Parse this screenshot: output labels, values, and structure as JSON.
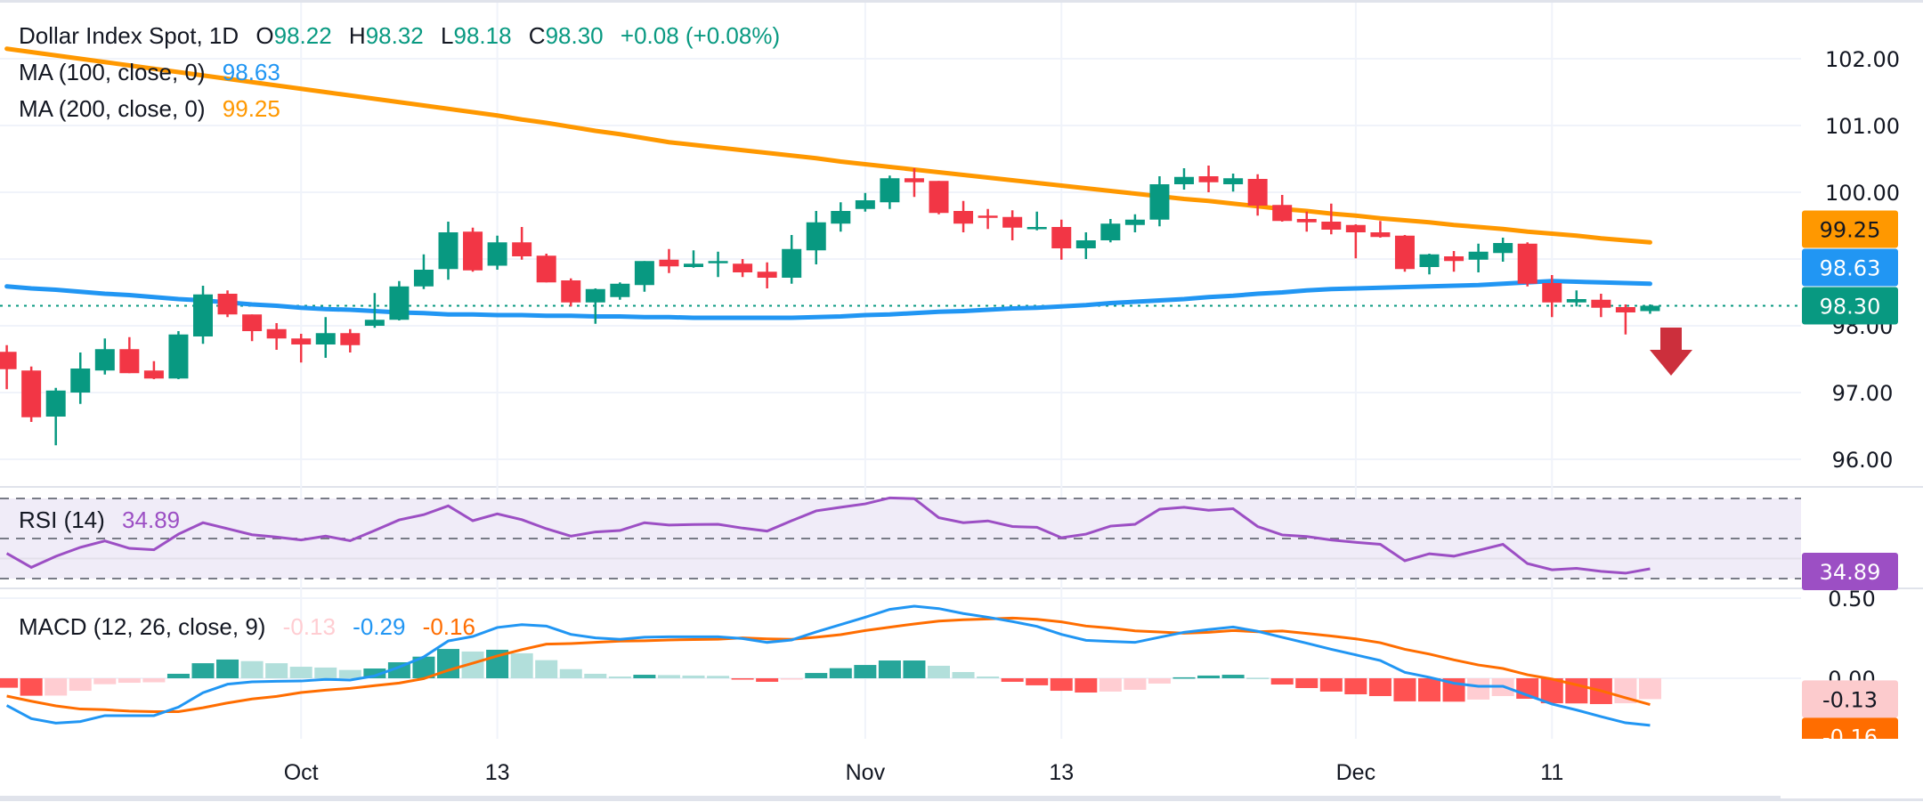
{
  "header": {
    "symbol": "Dollar Index Spot, 1D",
    "o_label": "O",
    "o": "98.22",
    "h_label": "H",
    "h": "98.32",
    "l_label": "L",
    "l": "98.18",
    "c_label": "C",
    "c": "98.30",
    "change": "+0.08 (+0.08%)"
  },
  "legend": {
    "ma100": {
      "label": "MA (100, close, 0)",
      "value": "98.63"
    },
    "ma200": {
      "label": "MA (200, close, 0)",
      "value": "99.25"
    },
    "rsi": {
      "label": "RSI (14)",
      "value": "34.89"
    },
    "macd": {
      "label": "MACD (12, 26, close, 9)",
      "hist": "-0.13",
      "macd": "-0.29",
      "signal": "-0.16"
    }
  },
  "colors": {
    "up": "#089981",
    "down": "#f23645",
    "ma100": "#2196f3",
    "ma200": "#ff9800",
    "rsi": "#9c4fc4",
    "rsi_band": "#f0ecf8",
    "macd": "#2196f3",
    "signal": "#ff6d00",
    "hist_up_strong": "#26a69a",
    "hist_up_weak": "#b2dfdb",
    "hist_down_strong": "#ff5252",
    "hist_down_weak": "#ffcdd2",
    "arrow": "#cc2f3c",
    "grid": "#f0f3fa",
    "text_value": "#089981"
  },
  "annotations": {
    "arrow": "down-arrow-icon"
  },
  "chart_data": [
    {
      "type": "candlestick",
      "title": "Dollar Index Spot, 1D",
      "ylim": [
        95.6,
        102.7
      ],
      "grid": true,
      "y_ticks": [
        {
          "value": 102,
          "label": "102.00"
        },
        {
          "value": 101,
          "label": "101.00"
        },
        {
          "value": 100,
          "label": "100.00"
        },
        {
          "value": 98,
          "label": "98.00"
        },
        {
          "value": 97,
          "label": "97.00"
        },
        {
          "value": 96,
          "label": "96.00"
        }
      ],
      "x_ticks": [
        {
          "bar": 12,
          "label": "Oct"
        },
        {
          "bar": 20,
          "label": "13"
        },
        {
          "bar": 35,
          "label": "Nov"
        },
        {
          "bar": 43,
          "label": "13"
        },
        {
          "bar": 55,
          "label": "Dec"
        },
        {
          "bar": 63,
          "label": "11"
        }
      ],
      "last_price": 98.3,
      "price_tags": [
        {
          "value": 99.25,
          "label": "99.25",
          "bg": "#ff9800",
          "fg": "#131722"
        },
        {
          "value": 98.63,
          "label": "98.63",
          "bg": "#2196f3",
          "fg": "#ffffff"
        },
        {
          "value": 98.3,
          "label": "98.30",
          "bg": "#089981",
          "fg": "#ffffff"
        }
      ],
      "ohlc": [
        [
          97.61,
          97.71,
          97.05,
          97.35
        ],
        [
          97.33,
          97.39,
          96.56,
          96.63
        ],
        [
          96.64,
          97.07,
          96.21,
          97.03
        ],
        [
          97.0,
          97.6,
          96.83,
          97.36
        ],
        [
          97.33,
          97.81,
          97.27,
          97.65
        ],
        [
          97.65,
          97.83,
          97.29,
          97.29
        ],
        [
          97.33,
          97.47,
          97.2,
          97.21
        ],
        [
          97.21,
          97.92,
          97.2,
          97.87
        ],
        [
          97.84,
          98.6,
          97.73,
          98.47
        ],
        [
          98.48,
          98.53,
          98.13,
          98.17
        ],
        [
          98.17,
          98.17,
          97.77,
          97.92
        ],
        [
          97.95,
          98.04,
          97.64,
          97.81
        ],
        [
          97.81,
          97.88,
          97.45,
          97.72
        ],
        [
          97.72,
          98.13,
          97.52,
          97.89
        ],
        [
          97.89,
          97.95,
          97.6,
          97.71
        ],
        [
          98.0,
          98.49,
          97.97,
          98.09
        ],
        [
          98.09,
          98.67,
          98.08,
          98.59
        ],
        [
          98.59,
          99.07,
          98.55,
          98.84
        ],
        [
          98.85,
          99.56,
          98.69,
          99.4
        ],
        [
          99.41,
          99.47,
          98.81,
          98.83
        ],
        [
          98.9,
          99.35,
          98.84,
          99.25
        ],
        [
          99.25,
          99.48,
          98.99,
          99.04
        ],
        [
          99.05,
          99.08,
          98.65,
          98.65
        ],
        [
          98.68,
          98.71,
          98.29,
          98.35
        ],
        [
          98.35,
          98.56,
          98.03,
          98.55
        ],
        [
          98.43,
          98.65,
          98.39,
          98.63
        ],
        [
          98.61,
          98.97,
          98.51,
          98.97
        ],
        [
          98.99,
          99.15,
          98.79,
          98.89
        ],
        [
          98.88,
          99.13,
          98.87,
          98.93
        ],
        [
          98.95,
          99.11,
          98.73,
          98.97
        ],
        [
          98.93,
          99.0,
          98.73,
          98.8
        ],
        [
          98.81,
          98.95,
          98.56,
          98.72
        ],
        [
          98.72,
          99.36,
          98.63,
          99.15
        ],
        [
          99.13,
          99.72,
          98.92,
          99.55
        ],
        [
          99.53,
          99.85,
          99.41,
          99.72
        ],
        [
          99.75,
          99.99,
          99.71,
          99.88
        ],
        [
          99.85,
          100.25,
          99.75,
          100.21
        ],
        [
          100.21,
          100.36,
          99.93,
          100.15
        ],
        [
          100.17,
          100.17,
          99.67,
          99.69
        ],
        [
          99.72,
          99.87,
          99.4,
          99.53
        ],
        [
          99.65,
          99.75,
          99.45,
          99.63
        ],
        [
          99.63,
          99.73,
          99.28,
          99.47
        ],
        [
          99.45,
          99.71,
          99.43,
          99.48
        ],
        [
          99.48,
          99.59,
          98.99,
          99.16
        ],
        [
          99.16,
          99.4,
          99.0,
          99.28
        ],
        [
          99.28,
          99.6,
          99.25,
          99.53
        ],
        [
          99.51,
          99.67,
          99.4,
          99.59
        ],
        [
          99.59,
          100.24,
          99.49,
          100.12
        ],
        [
          100.12,
          100.36,
          100.04,
          100.23
        ],
        [
          100.24,
          100.4,
          100.0,
          100.15
        ],
        [
          100.12,
          100.28,
          100.01,
          100.21
        ],
        [
          100.2,
          100.27,
          99.65,
          99.8
        ],
        [
          99.81,
          99.96,
          99.56,
          99.57
        ],
        [
          99.6,
          99.71,
          99.41,
          99.55
        ],
        [
          99.56,
          99.83,
          99.37,
          99.44
        ],
        [
          99.51,
          99.52,
          99.01,
          99.4
        ],
        [
          99.4,
          99.57,
          99.32,
          99.33
        ],
        [
          99.35,
          99.36,
          98.81,
          98.85
        ],
        [
          98.88,
          99.08,
          98.77,
          99.07
        ],
        [
          99.04,
          99.12,
          98.81,
          98.97
        ],
        [
          98.99,
          99.23,
          98.8,
          99.11
        ],
        [
          99.09,
          99.32,
          98.96,
          99.24
        ],
        [
          99.23,
          99.25,
          98.59,
          98.63
        ],
        [
          98.64,
          98.76,
          98.13,
          98.35
        ],
        [
          98.35,
          98.53,
          98.29,
          98.4
        ],
        [
          98.39,
          98.48,
          98.13,
          98.27
        ],
        [
          98.28,
          98.32,
          97.87,
          98.2
        ],
        [
          98.22,
          98.32,
          98.18,
          98.3
        ]
      ],
      "series": [
        {
          "name": "MA (100, close, 0)",
          "values": [
            98.59,
            98.56,
            98.54,
            98.51,
            98.48,
            98.46,
            98.43,
            98.4,
            98.38,
            98.35,
            98.32,
            98.3,
            98.27,
            98.25,
            98.24,
            98.22,
            98.2,
            98.19,
            98.17,
            98.17,
            98.16,
            98.16,
            98.15,
            98.15,
            98.14,
            98.14,
            98.13,
            98.13,
            98.12,
            98.12,
            98.12,
            98.12,
            98.12,
            98.13,
            98.14,
            98.16,
            98.17,
            98.19,
            98.21,
            98.22,
            98.24,
            98.26,
            98.27,
            98.29,
            98.31,
            98.34,
            98.36,
            98.38,
            98.4,
            98.43,
            98.45,
            98.48,
            98.5,
            98.53,
            98.55,
            98.56,
            98.57,
            98.58,
            98.59,
            98.6,
            98.61,
            98.63,
            98.65,
            98.67,
            98.66,
            98.65,
            98.64,
            98.63
          ]
        },
        {
          "name": "MA (200, close, 0)",
          "values": [
            102.15,
            102.1,
            102.05,
            102.0,
            101.95,
            101.9,
            101.85,
            101.8,
            101.75,
            101.7,
            101.65,
            101.6,
            101.55,
            101.5,
            101.45,
            101.4,
            101.35,
            101.3,
            101.25,
            101.2,
            101.15,
            101.09,
            101.04,
            100.98,
            100.92,
            100.87,
            100.81,
            100.75,
            100.71,
            100.67,
            100.63,
            100.59,
            100.55,
            100.51,
            100.46,
            100.42,
            100.38,
            100.34,
            100.3,
            100.26,
            100.22,
            100.18,
            100.14,
            100.1,
            100.06,
            100.02,
            99.98,
            99.94,
            99.9,
            99.87,
            99.83,
            99.79,
            99.75,
            99.72,
            99.68,
            99.65,
            99.61,
            99.58,
            99.55,
            99.51,
            99.48,
            99.45,
            99.41,
            99.38,
            99.35,
            99.31,
            99.28,
            99.25
          ]
        }
      ]
    },
    {
      "type": "line",
      "title": "RSI (14)",
      "ylim": [
        25,
        80
      ],
      "bands": [
        70,
        50,
        30
      ],
      "last_tag": {
        "value": 34.89,
        "label": "34.89"
      },
      "values": [
        42.6,
        35.6,
        41.1,
        45.6,
        48.8,
        45.1,
        44.4,
        52.2,
        57.9,
        54.9,
        51.9,
        50.7,
        49.3,
        51.2,
        48.9,
        54.0,
        59.3,
        61.9,
        66.3,
        58.9,
        62.3,
        59.4,
        54.9,
        51.2,
        53.3,
        54.0,
        57.9,
        56.7,
        57.0,
        57.1,
        55.2,
        53.7,
        58.9,
        63.8,
        65.6,
        67.3,
        70.3,
        69.9,
        60.4,
        57.9,
        58.8,
        56.0,
        55.6,
        50.4,
        52.2,
        56.2,
        57.1,
        64.6,
        65.6,
        64.1,
        64.9,
        56.0,
        51.8,
        51.0,
        49.3,
        48.1,
        47.1,
        38.9,
        42.4,
        41.2,
        44.1,
        47.1,
        37.5,
        34.4,
        35.1,
        33.6,
        32.7,
        34.89
      ]
    },
    {
      "type": "bar+line",
      "title": "MACD (12, 26, close, 9)",
      "ylim": [
        -0.38,
        0.5
      ],
      "y_ticks": [
        {
          "value": 0.5,
          "label": "0.50"
        },
        {
          "value": 0,
          "label": "0.00"
        }
      ],
      "last_tags": [
        {
          "value": -0.13,
          "label": "-0.13",
          "bg": "#fccbcd",
          "fg": "#131722"
        },
        {
          "value": -0.16,
          "label": "-0.16",
          "bg": "#ff6d00",
          "fg": "#ffffff"
        }
      ],
      "macd": [
        -0.17,
        -0.252,
        -0.28,
        -0.27,
        -0.233,
        -0.233,
        -0.233,
        -0.18,
        -0.09,
        -0.037,
        -0.022,
        -0.019,
        -0.017,
        -0.007,
        -0.011,
        0.015,
        0.07,
        0.133,
        0.233,
        0.261,
        0.317,
        0.335,
        0.326,
        0.274,
        0.252,
        0.243,
        0.256,
        0.259,
        0.259,
        0.259,
        0.248,
        0.224,
        0.239,
        0.289,
        0.335,
        0.381,
        0.43,
        0.45,
        0.435,
        0.404,
        0.381,
        0.354,
        0.324,
        0.274,
        0.237,
        0.23,
        0.224,
        0.256,
        0.287,
        0.304,
        0.32,
        0.293,
        0.256,
        0.219,
        0.181,
        0.146,
        0.111,
        0.037,
        0.006,
        -0.031,
        -0.05,
        -0.05,
        -0.106,
        -0.161,
        -0.198,
        -0.239,
        -0.278,
        -0.294
      ],
      "signal": [
        -0.111,
        -0.143,
        -0.172,
        -0.192,
        -0.196,
        -0.205,
        -0.208,
        -0.208,
        -0.184,
        -0.154,
        -0.129,
        -0.113,
        -0.089,
        -0.074,
        -0.063,
        -0.046,
        -0.03,
        -0.002,
        0.05,
        0.094,
        0.139,
        0.179,
        0.213,
        0.217,
        0.224,
        0.232,
        0.234,
        0.239,
        0.242,
        0.244,
        0.252,
        0.246,
        0.243,
        0.256,
        0.272,
        0.298,
        0.319,
        0.339,
        0.357,
        0.365,
        0.37,
        0.376,
        0.368,
        0.352,
        0.326,
        0.313,
        0.296,
        0.289,
        0.281,
        0.287,
        0.298,
        0.29,
        0.295,
        0.28,
        0.264,
        0.246,
        0.222,
        0.181,
        0.151,
        0.115,
        0.083,
        0.061,
        0.022,
        -0.005,
        -0.041,
        -0.078,
        -0.122,
        -0.164
      ],
      "histogram": [
        -0.059,
        -0.109,
        -0.108,
        -0.078,
        -0.037,
        -0.028,
        -0.025,
        0.028,
        0.094,
        0.117,
        0.107,
        0.094,
        0.072,
        0.067,
        0.052,
        0.061,
        0.1,
        0.135,
        0.183,
        0.167,
        0.178,
        0.156,
        0.113,
        0.057,
        0.028,
        0.011,
        0.022,
        0.02,
        0.017,
        0.015,
        -0.004,
        -0.022,
        -0.004,
        0.033,
        0.063,
        0.083,
        0.111,
        0.111,
        0.078,
        0.039,
        0.011,
        -0.022,
        -0.044,
        -0.078,
        -0.089,
        -0.083,
        -0.072,
        -0.033,
        0.006,
        0.017,
        0.022,
        0.003,
        -0.039,
        -0.061,
        -0.083,
        -0.1,
        -0.111,
        -0.144,
        -0.145,
        -0.146,
        -0.133,
        -0.111,
        -0.128,
        -0.156,
        -0.157,
        -0.161,
        -0.156,
        -0.13
      ]
    }
  ]
}
